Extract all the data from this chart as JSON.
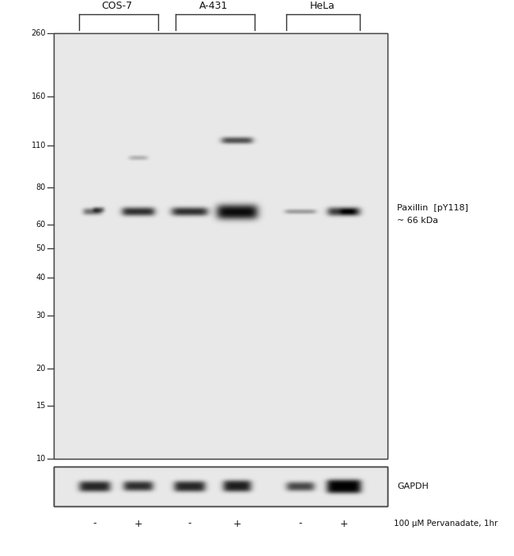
{
  "fig_width": 6.5,
  "fig_height": 7.03,
  "bg_color": "#ffffff",
  "panel_bg": "#e8e8e8",
  "cell_lines": [
    "COS-7",
    "A-431",
    "HeLa"
  ],
  "mw_labels": [
    "260",
    "160",
    "110",
    "80",
    "60",
    "50",
    "40",
    "30",
    "20",
    "15",
    "10"
  ],
  "mw_values": [
    260,
    160,
    110,
    80,
    60,
    50,
    40,
    30,
    20,
    15,
    10
  ],
  "lane_labels": [
    "-",
    "+",
    "-",
    "+",
    "-",
    "+"
  ],
  "annotation_line1": "Paxillin  [pY118]",
  "annotation_line2": "~ 66 kDa",
  "gapdh_label": "GAPDH",
  "bottom_label": "100 μM Pervanadate, 1hr",
  "band_color_dark": "#111111",
  "band_color_mid": "#555555",
  "band_color_light": "#888888",
  "panel_edge_color": "#444444",
  "tick_color": "#333333",
  "text_color": "#111111"
}
